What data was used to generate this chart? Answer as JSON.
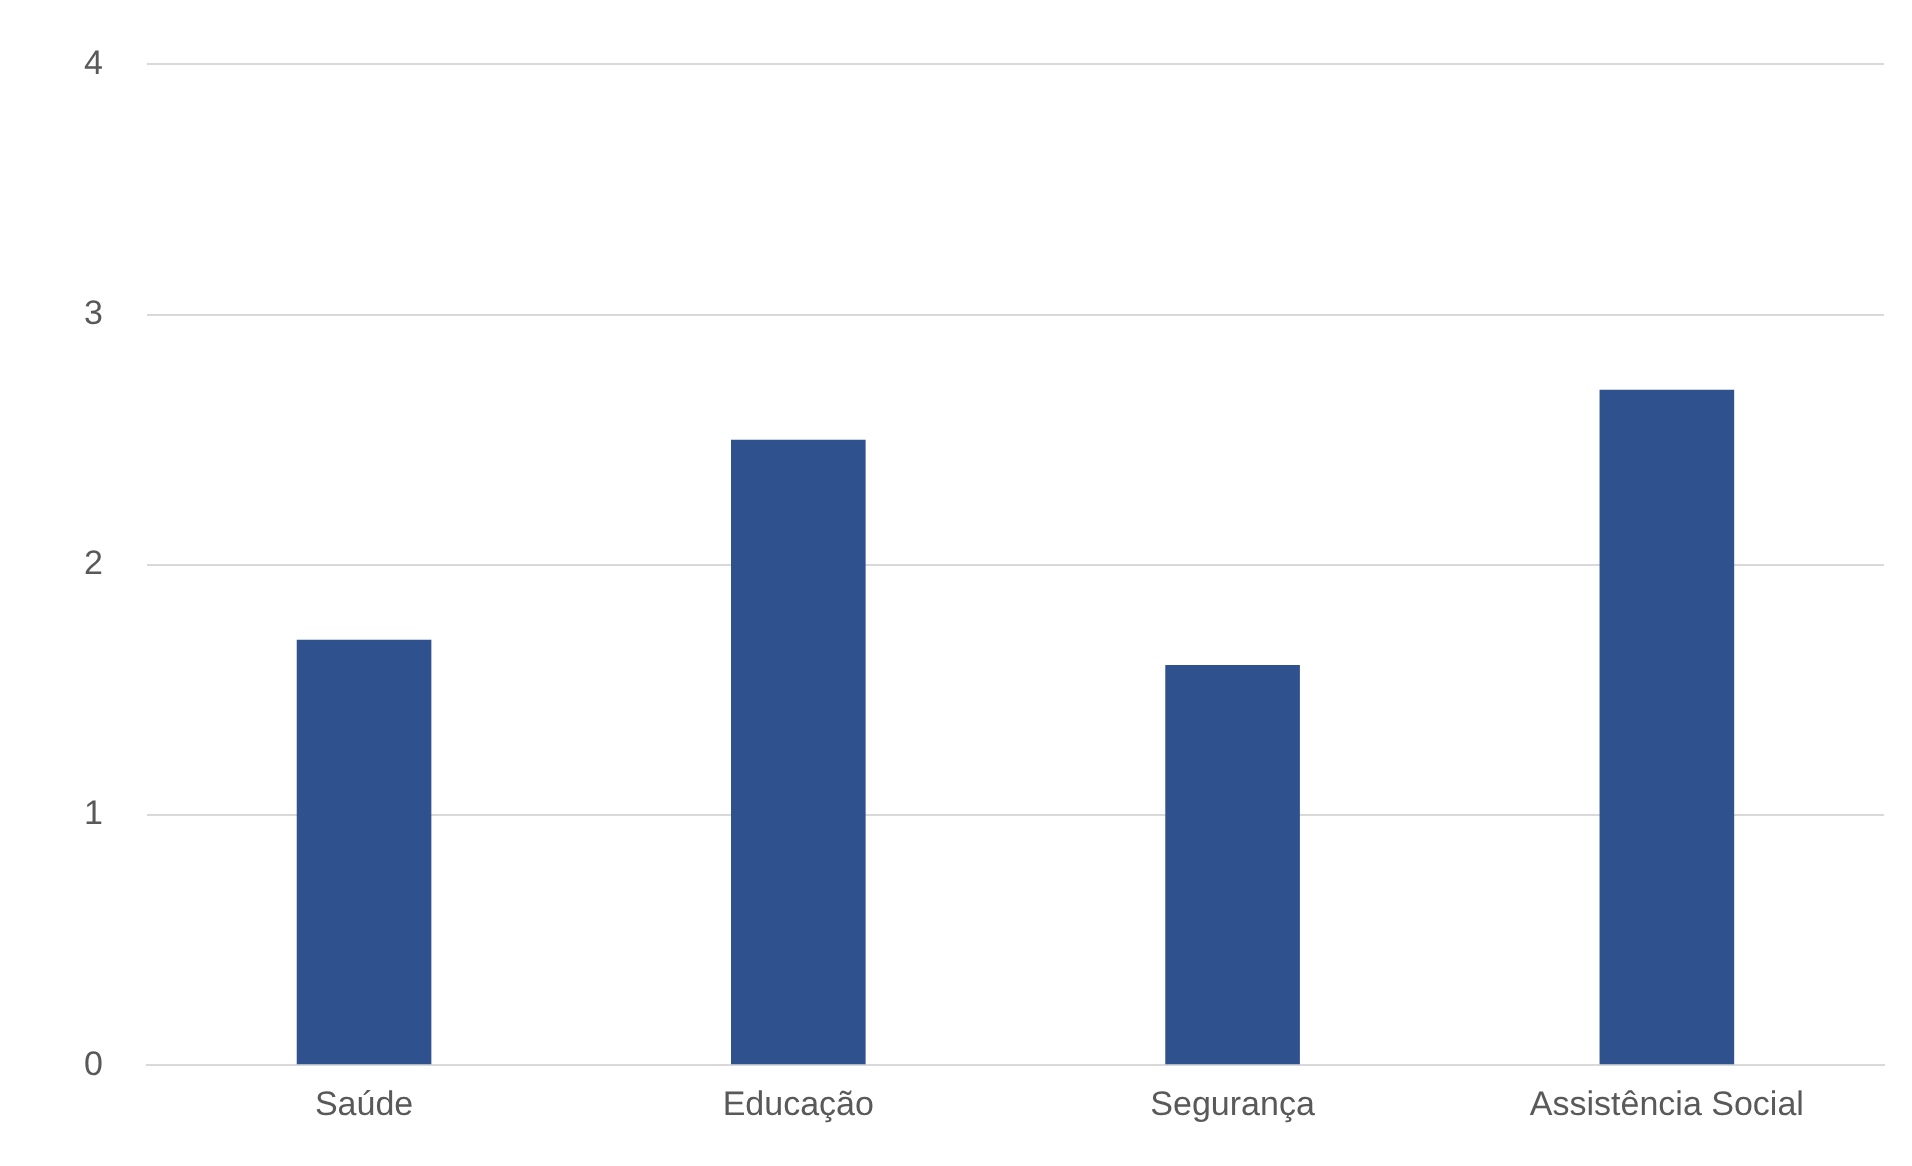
{
  "chart_data": {
    "type": "bar",
    "categories": [
      "Saúde",
      "Educação",
      "Segurança",
      "Assistência Social"
    ],
    "values": [
      1.7,
      2.5,
      1.6,
      2.7
    ],
    "color": "#2f528f",
    "ylim": [
      0,
      4
    ],
    "yticks": [
      0,
      1,
      2,
      3,
      4
    ],
    "grid": "y",
    "legend": false
  }
}
